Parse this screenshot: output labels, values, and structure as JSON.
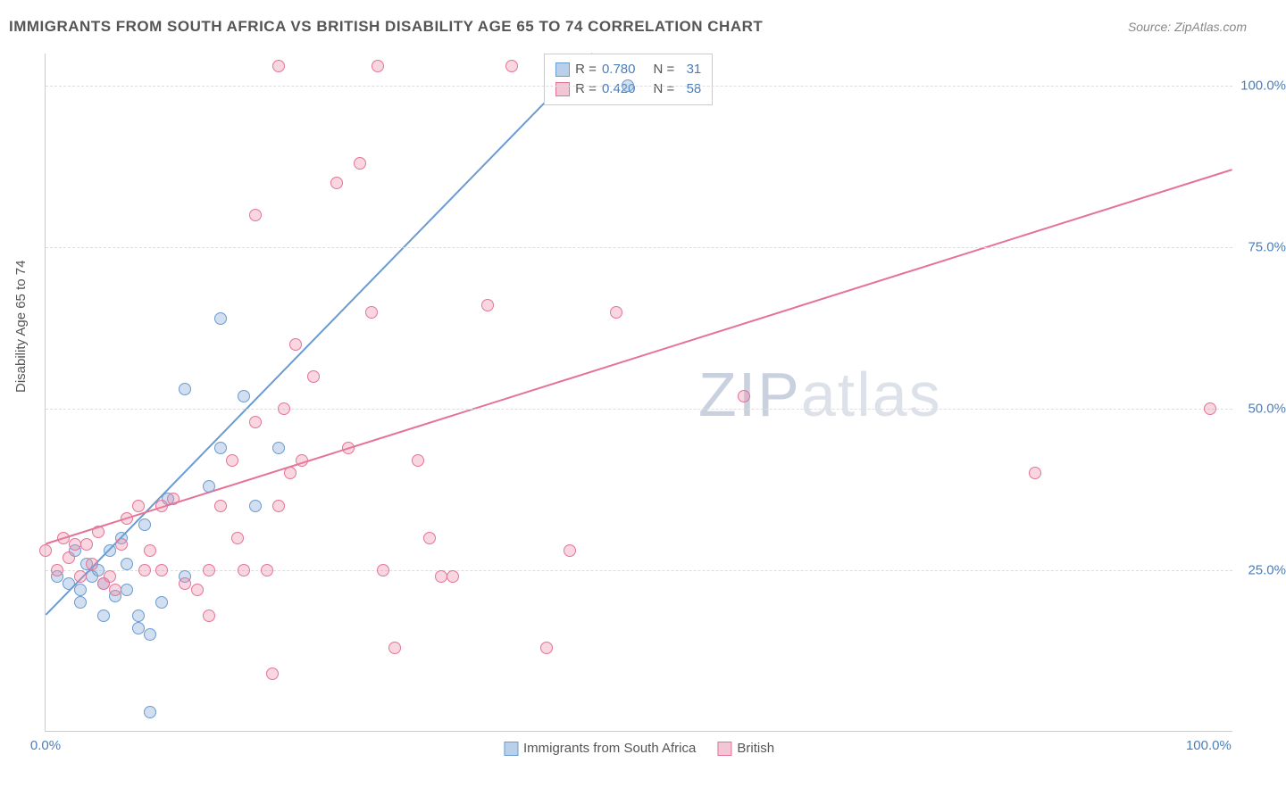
{
  "title": "IMMIGRANTS FROM SOUTH AFRICA VS BRITISH DISABILITY AGE 65 TO 74 CORRELATION CHART",
  "source_label": "Source: ",
  "source_value": "ZipAtlas.com",
  "ylabel": "Disability Age 65 to 74",
  "chart": {
    "type": "scatter",
    "xlim": [
      0,
      102
    ],
    "ylim": [
      0,
      105
    ],
    "yticks": [
      25,
      50,
      75,
      100
    ],
    "ytick_labels": [
      "25.0%",
      "50.0%",
      "75.0%",
      "100.0%"
    ],
    "xtick_left": "0.0%",
    "xtick_right": "100.0%",
    "background_color": "#ffffff",
    "grid_color": "#dddddd",
    "axis_color": "#cccccc",
    "label_color": "#4a7ebb",
    "point_radius": 7,
    "point_border_width": 1.5,
    "line_width": 2,
    "series": [
      {
        "name": "Immigrants from South Africa",
        "fill": "rgba(122,162,212,0.35)",
        "stroke": "#6a9bd1",
        "swatch_fill": "#b8d0ea",
        "swatch_stroke": "#6a9bd1",
        "R": "0.780",
        "N": "31",
        "regression": {
          "x1": 0,
          "y1": 18,
          "x2": 47,
          "y2": 105
        },
        "points": [
          [
            1,
            24
          ],
          [
            2,
            23
          ],
          [
            2.5,
            28
          ],
          [
            3,
            22
          ],
          [
            3,
            20
          ],
          [
            3.5,
            26
          ],
          [
            4,
            24
          ],
          [
            4.5,
            25
          ],
          [
            5,
            23
          ],
          [
            5,
            18
          ],
          [
            5.5,
            28
          ],
          [
            6,
            21
          ],
          [
            6.5,
            30
          ],
          [
            7,
            26
          ],
          [
            7,
            22
          ],
          [
            8,
            18
          ],
          [
            8,
            16
          ],
          [
            8.5,
            32
          ],
          [
            9,
            3
          ],
          [
            9,
            15
          ],
          [
            10,
            20
          ],
          [
            10.5,
            36
          ],
          [
            12,
            24
          ],
          [
            12,
            53
          ],
          [
            14,
            38
          ],
          [
            15,
            64
          ],
          [
            15,
            44
          ],
          [
            17,
            52
          ],
          [
            18,
            35
          ],
          [
            20,
            44
          ],
          [
            50,
            100
          ]
        ]
      },
      {
        "name": "British",
        "fill": "rgba(236,140,170,0.35)",
        "stroke": "#e57397",
        "swatch_fill": "#f3c6d5",
        "swatch_stroke": "#e57397",
        "R": "0.420",
        "N": "58",
        "regression": {
          "x1": 0,
          "y1": 29,
          "x2": 102,
          "y2": 87
        },
        "points": [
          [
            0,
            28
          ],
          [
            1,
            25
          ],
          [
            1.5,
            30
          ],
          [
            2,
            27
          ],
          [
            2.5,
            29
          ],
          [
            3,
            24
          ],
          [
            3.5,
            29
          ],
          [
            4,
            26
          ],
          [
            4.5,
            31
          ],
          [
            5,
            23
          ],
          [
            5.5,
            24
          ],
          [
            6,
            22
          ],
          [
            6.5,
            29
          ],
          [
            7,
            33
          ],
          [
            8,
            35
          ],
          [
            8.5,
            25
          ],
          [
            9,
            28
          ],
          [
            10,
            35
          ],
          [
            10,
            25
          ],
          [
            11,
            36
          ],
          [
            12,
            23
          ],
          [
            13,
            22
          ],
          [
            14,
            25
          ],
          [
            14,
            18
          ],
          [
            15,
            35
          ],
          [
            16,
            42
          ],
          [
            16.5,
            30
          ],
          [
            17,
            25
          ],
          [
            18,
            48
          ],
          [
            18,
            80
          ],
          [
            19,
            25
          ],
          [
            19.5,
            9
          ],
          [
            20,
            35
          ],
          [
            20,
            103
          ],
          [
            20.5,
            50
          ],
          [
            21,
            40
          ],
          [
            21.5,
            60
          ],
          [
            22,
            42
          ],
          [
            23,
            55
          ],
          [
            25,
            85
          ],
          [
            26,
            44
          ],
          [
            27,
            88
          ],
          [
            28,
            65
          ],
          [
            28.5,
            103
          ],
          [
            29,
            25
          ],
          [
            30,
            13
          ],
          [
            32,
            42
          ],
          [
            33,
            30
          ],
          [
            34,
            24
          ],
          [
            35,
            24
          ],
          [
            38,
            66
          ],
          [
            40,
            103
          ],
          [
            43,
            13
          ],
          [
            45,
            28
          ],
          [
            49,
            65
          ],
          [
            60,
            52
          ],
          [
            85,
            40
          ],
          [
            100,
            50
          ]
        ]
      }
    ]
  },
  "legend": {
    "R_label": "R =",
    "N_label": "N ="
  },
  "watermark": {
    "part1": "ZIP",
    "part2": "atlas"
  }
}
